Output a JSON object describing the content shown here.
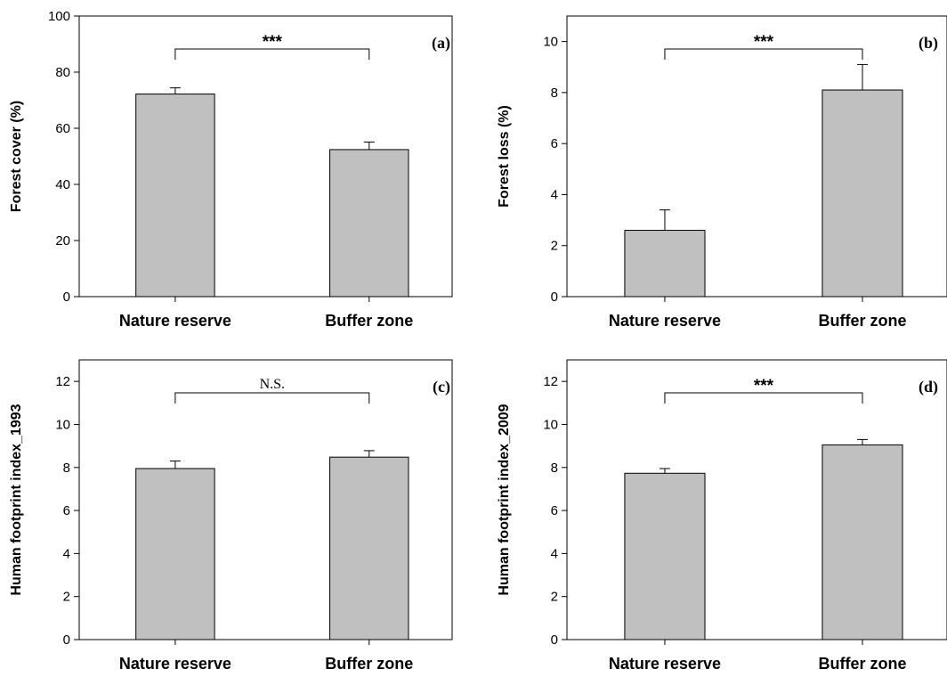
{
  "chart_data": [
    {
      "type": "bar",
      "panel_label": "(a)",
      "ylabel": "Forest cover (%)",
      "categories": [
        "Nature reserve",
        "Buffer zone"
      ],
      "values": [
        72.2,
        52.4
      ],
      "errors": [
        2.2,
        2.7
      ],
      "ylim": [
        0,
        100
      ],
      "yticks": [
        "0",
        "20",
        "40",
        "60",
        "80",
        "100"
      ],
      "significance": "***",
      "bar_color": "#c0c0c0"
    },
    {
      "type": "bar",
      "panel_label": "(b)",
      "ylabel": "Forest loss (%)",
      "categories": [
        "Nature reserve",
        "Buffer zone"
      ],
      "values": [
        2.6,
        8.1
      ],
      "errors": [
        0.8,
        1.0
      ],
      "ylim": [
        0,
        11
      ],
      "yticks": [
        "0",
        "2",
        "4",
        "6",
        "8",
        "10"
      ],
      "significance": "***",
      "bar_color": "#c0c0c0"
    },
    {
      "type": "bar",
      "panel_label": "(c)",
      "ylabel": "Human footprint index_1993",
      "categories": [
        "Nature reserve",
        "Buffer zone"
      ],
      "values": [
        7.95,
        8.48
      ],
      "errors": [
        0.35,
        0.3
      ],
      "ylim": [
        0,
        13
      ],
      "yticks": [
        "0",
        "2",
        "4",
        "6",
        "8",
        "10",
        "12"
      ],
      "significance": "N.S.",
      "bar_color": "#c0c0c0"
    },
    {
      "type": "bar",
      "panel_label": "(d)",
      "ylabel": "Human footprint index_2009",
      "categories": [
        "Nature reserve",
        "Buffer zone"
      ],
      "values": [
        7.73,
        9.05
      ],
      "errors": [
        0.22,
        0.25
      ],
      "ylim": [
        0,
        13
      ],
      "yticks": [
        "0",
        "2",
        "4",
        "6",
        "8",
        "10",
        "12"
      ],
      "significance": "***",
      "bar_color": "#c0c0c0"
    }
  ]
}
